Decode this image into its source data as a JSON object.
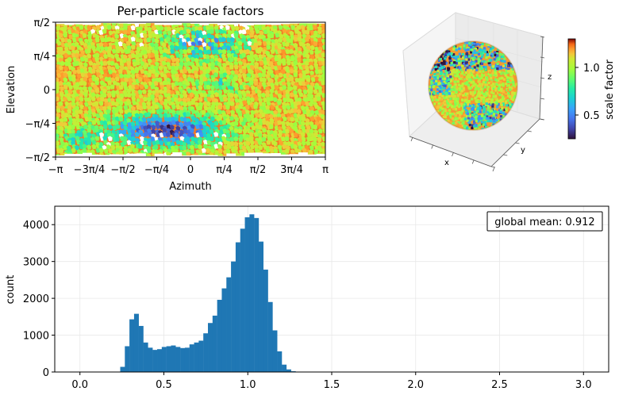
{
  "chart_data": [
    {
      "type": "heatmap",
      "title": "Per-particle scale factors",
      "xlabel": "Azimuth",
      "ylabel": "Elevation",
      "x_ticks": [
        "−π",
        "−3π/4",
        "−π/2",
        "−π/4",
        "0",
        "π/4",
        "π/2",
        "3π/4",
        "π"
      ],
      "y_ticks": [
        "−π/2",
        "−π/4",
        "0",
        "π/4",
        "π/2"
      ],
      "xlim": [
        -3.1416,
        3.1416
      ],
      "ylim": [
        -1.5708,
        1.5708
      ],
      "colormap": "turbo",
      "value_range": [
        0.25,
        1.3
      ],
      "pattern": "orange-red (~1.1) dominant with blue/cyan low-value band between elevation −π/4 and −π/2 near azimuth −π/2 to π/4, and scattered blue/white patches near the top between azimuth −π/4 and π/2"
    },
    {
      "type": "scatter",
      "projection": "3d-sphere",
      "xlabel": "x",
      "ylabel": "y",
      "zlabel": "z",
      "colormap": "turbo",
      "colorbar": {
        "label": "scale factor",
        "ticks": [
          0.5,
          1.0
        ],
        "tick_labels": [
          "0.5",
          "1.0"
        ],
        "range": [
          0.25,
          1.3
        ]
      }
    },
    {
      "type": "bar",
      "subtype": "histogram",
      "ylabel": "count",
      "xlim": [
        -0.15,
        3.15
      ],
      "ylim": [
        0,
        4500
      ],
      "x_ticks": [
        0.0,
        0.5,
        1.0,
        1.5,
        2.0,
        2.5,
        3.0
      ],
      "x_tick_labels": [
        "0.0",
        "0.5",
        "1.0",
        "1.5",
        "2.0",
        "2.5",
        "3.0"
      ],
      "y_ticks": [
        0,
        1000,
        2000,
        3000,
        4000
      ],
      "y_tick_labels": [
        "0",
        "1000",
        "2000",
        "3000",
        "4000"
      ],
      "grid": true,
      "color": "#1f77b4",
      "annotation": "global mean: 0.912",
      "bin_start": 0.24,
      "bin_width": 0.0275,
      "values": [
        140,
        700,
        1430,
        1580,
        1250,
        800,
        660,
        600,
        620,
        680,
        700,
        720,
        680,
        650,
        660,
        750,
        800,
        850,
        1050,
        1330,
        1530,
        1960,
        2270,
        2570,
        3000,
        3520,
        3890,
        4200,
        4280,
        4180,
        3540,
        2780,
        1900,
        1130,
        560,
        200,
        70,
        20
      ]
    }
  ]
}
